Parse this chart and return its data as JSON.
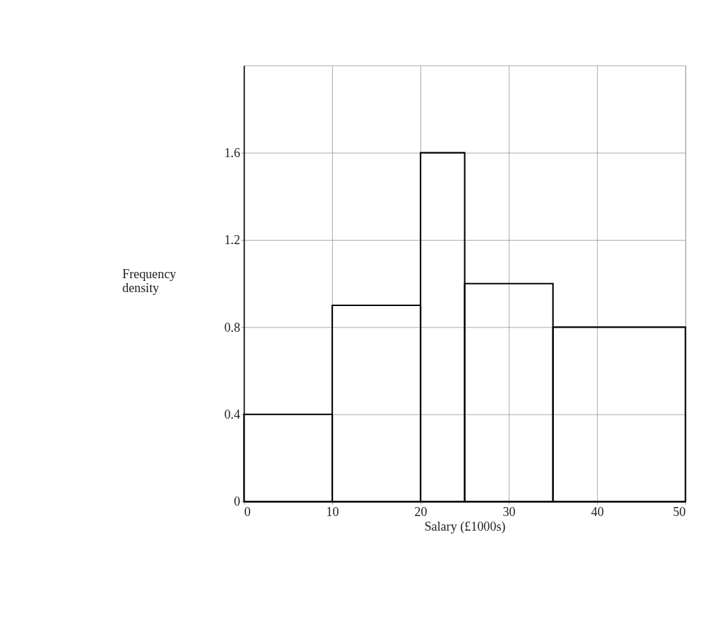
{
  "chart_data": {
    "type": "histogram",
    "xlabel": "Salary (£1000s)",
    "ylabel": "Frequency density",
    "bins": [
      0,
      10,
      20,
      25,
      35,
      50
    ],
    "values": [
      0.4,
      0.9,
      1.6,
      1.0,
      0.8
    ],
    "color": "#000000",
    "xlim": [
      0,
      50
    ],
    "xticks": [
      0,
      10,
      20,
      30,
      40,
      50
    ],
    "ylim": [
      0,
      2.0
    ],
    "yticks": [
      0,
      0.4,
      0.8,
      1.2,
      1.6
    ],
    "grid": true
  }
}
